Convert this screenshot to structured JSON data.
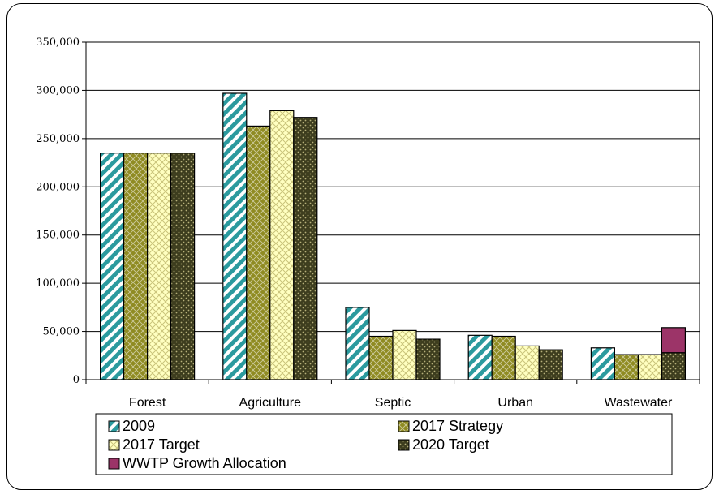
{
  "chart_data": {
    "type": "bar",
    "title": "",
    "xlabel": "",
    "ylabel": "",
    "ylim": [
      0,
      350000
    ],
    "yticks": [
      0,
      50000,
      100000,
      150000,
      200000,
      250000,
      300000,
      350000
    ],
    "ytick_labels": [
      "0",
      "50,000",
      "100,000",
      "150,000",
      "200,000",
      "250,000",
      "300,000",
      "350,000"
    ],
    "grid": true,
    "legend_position": "bottom",
    "categories": [
      "Forest",
      "Agriculture",
      "Septic",
      "Urban",
      "Wastewater"
    ],
    "series": [
      {
        "name": "2009",
        "values": [
          235000,
          297000,
          75000,
          46000,
          33000
        ],
        "color": "#2b9a9e",
        "pattern": "diagonal-stripes"
      },
      {
        "name": "2017 Strategy",
        "values": [
          235000,
          263000,
          45000,
          45000,
          26000
        ],
        "color": "#8f8b22",
        "pattern": "diamond-lattice"
      },
      {
        "name": "2017 Target",
        "values": [
          235000,
          279000,
          51000,
          35000,
          26000
        ],
        "color": "#ffffc0",
        "pattern": "lattice"
      },
      {
        "name": "2020 Target",
        "values": [
          235000,
          272000,
          42000,
          31000,
          28000
        ],
        "color": "#3d3d1e",
        "pattern": "dots"
      },
      {
        "name": "WWTP Growth Allocation",
        "values": [
          0,
          0,
          0,
          0,
          26000
        ],
        "color": "#9c3468",
        "stacked_on": "2020 Target"
      }
    ]
  }
}
